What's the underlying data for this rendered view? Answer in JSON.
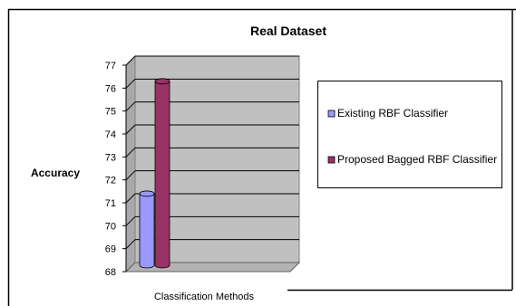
{
  "chart_data": {
    "type": "bar",
    "style": "3d-cylinder",
    "title": "Real Dataset",
    "xlabel": "Classification Methods",
    "ylabel": "Accuracy",
    "ylim": [
      68,
      77
    ],
    "yticks": [
      68,
      69,
      70,
      71,
      72,
      73,
      74,
      75,
      76,
      77
    ],
    "grid": true,
    "legend_position": "right",
    "categories": [
      ""
    ],
    "series": [
      {
        "name": "Existing RBF Classifier",
        "values": [
          71.2
        ],
        "color": "#9999ff"
      },
      {
        "name": "Proposed Bagged RBF Classifier",
        "values": [
          76.1
        ],
        "color": "#993366"
      }
    ]
  }
}
